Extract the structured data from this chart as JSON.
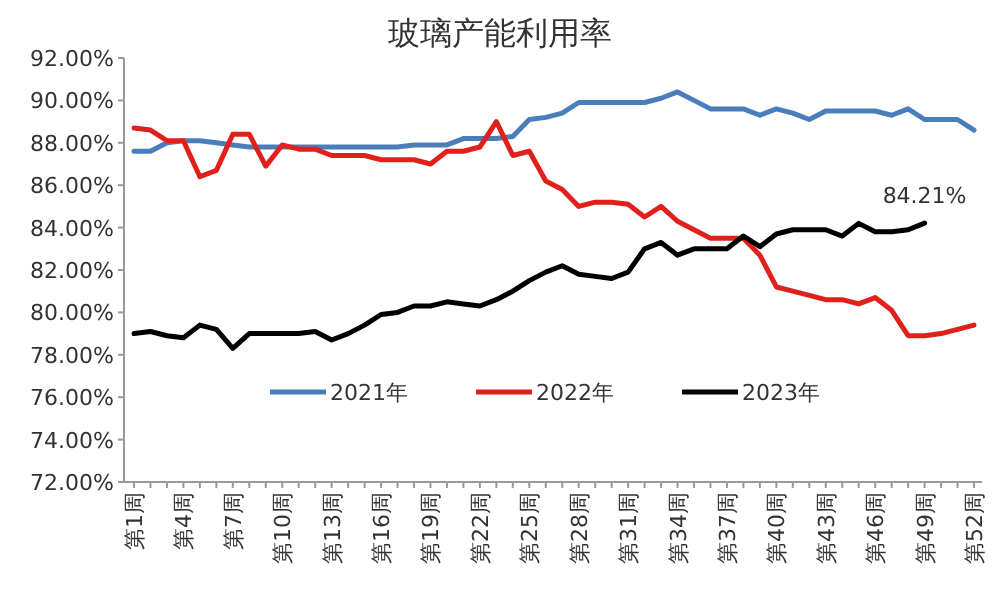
{
  "chart_data": {
    "type": "line",
    "title": "玻璃产能利用率",
    "categories": [
      "第1周",
      null,
      null,
      "第4周",
      null,
      null,
      "第7周",
      null,
      null,
      "第10周",
      null,
      null,
      "第13周",
      null,
      null,
      "第16周",
      null,
      null,
      "第19周",
      null,
      null,
      "第22周",
      null,
      null,
      "第25周",
      null,
      null,
      "第28周",
      null,
      null,
      "第31周",
      null,
      null,
      "第34周",
      null,
      null,
      "第37周",
      null,
      null,
      "第40周",
      null,
      null,
      "第43周",
      null,
      null,
      "第46周",
      null,
      null,
      "第49周",
      null,
      null,
      "第52周"
    ],
    "ylim": [
      72,
      92
    ],
    "yticks": [
      {
        "value": 72,
        "label": "72.00%"
      },
      {
        "value": 74,
        "label": "74.00%"
      },
      {
        "value": 76,
        "label": "76.00%"
      },
      {
        "value": 78,
        "label": "78.00%"
      },
      {
        "value": 80,
        "label": "80.00%"
      },
      {
        "value": 82,
        "label": "82.00%"
      },
      {
        "value": 84,
        "label": "84.00%"
      },
      {
        "value": 86,
        "label": "86.00%"
      },
      {
        "value": 88,
        "label": "88.00%"
      },
      {
        "value": 90,
        "label": "90.00%"
      },
      {
        "value": 92,
        "label": "92.00%"
      }
    ],
    "legend": "bottom",
    "marker": "none",
    "line_style": "solid",
    "series": [
      {
        "name": "2021年",
        "color": "#4a7ebb",
        "values": [
          87.6,
          87.6,
          88.0,
          88.1,
          88.1,
          88.0,
          87.9,
          87.8,
          87.8,
          87.8,
          87.8,
          87.8,
          87.8,
          87.8,
          87.8,
          87.8,
          87.8,
          87.9,
          87.9,
          87.9,
          88.2,
          88.2,
          88.2,
          88.3,
          89.1,
          89.2,
          89.4,
          89.9,
          89.9,
          89.9,
          89.9,
          89.9,
          90.1,
          90.4,
          90.0,
          89.6,
          89.6,
          89.6,
          89.3,
          89.6,
          89.4,
          89.1,
          89.5,
          89.5,
          89.5,
          89.5,
          89.3,
          89.6,
          89.1,
          89.1,
          89.1,
          88.6
        ]
      },
      {
        "name": "2022年",
        "color": "#e0201b",
        "values": [
          88.7,
          88.6,
          88.1,
          88.1,
          86.4,
          86.7,
          88.4,
          88.4,
          86.9,
          87.9,
          87.7,
          87.7,
          87.4,
          87.4,
          87.4,
          87.2,
          87.2,
          87.2,
          87.0,
          87.6,
          87.6,
          87.8,
          89.0,
          87.4,
          87.6,
          86.2,
          85.8,
          85.0,
          85.2,
          85.2,
          85.1,
          84.5,
          85.0,
          84.3,
          83.9,
          83.5,
          83.5,
          83.5,
          82.7,
          81.2,
          81.0,
          80.8,
          80.6,
          80.6,
          80.4,
          80.7,
          80.1,
          78.9,
          78.9,
          79.0,
          79.2,
          79.4
        ]
      },
      {
        "name": "2023年",
        "color": "#000000",
        "values": [
          79.0,
          79.1,
          78.9,
          78.8,
          79.4,
          79.2,
          78.3,
          79.0,
          79.0,
          79.0,
          79.0,
          79.1,
          78.7,
          79.0,
          79.4,
          79.9,
          80.0,
          80.3,
          80.3,
          80.5,
          80.4,
          80.3,
          80.6,
          81.0,
          81.5,
          81.9,
          82.2,
          81.8,
          81.7,
          81.6,
          81.9,
          83.0,
          83.3,
          82.7,
          83.0,
          83.0,
          83.0,
          83.6,
          83.1,
          83.7,
          83.9,
          83.9,
          83.9,
          83.6,
          84.2,
          83.8,
          83.8,
          83.9,
          84.21,
          null,
          null,
          null
        ]
      }
    ],
    "annotations": [
      {
        "text": "84.21%",
        "x": "第49周",
        "y": 84.21
      }
    ]
  }
}
